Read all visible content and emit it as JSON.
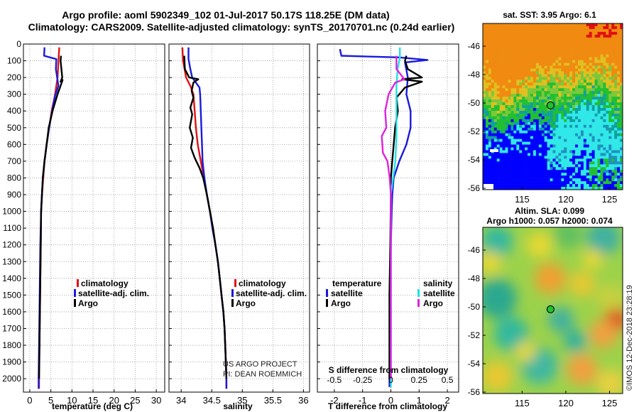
{
  "title": {
    "line1": "Argo profile: aoml 5902349_102 01-Jul-2017 50.17S 118.25E (DM data)",
    "line2": "Climatology: CARS2009. Satellite-adjusted climatology: synTS_20170701.nc (0.24d earlier)"
  },
  "colors": {
    "climatology": "#e01010",
    "satellite": "#1a1adc",
    "argo": "#000000",
    "argo_salinity_diff": "#e020e0",
    "satellite_salinity_diff": "#20e0e0"
  },
  "depth_ticks": [
    "0",
    "100",
    "200",
    "300",
    "400",
    "500",
    "600",
    "700",
    "800",
    "900",
    "1000",
    "1100",
    "1200",
    "1300",
    "1400",
    "1500",
    "1600",
    "1700",
    "1800",
    "1900",
    "2000"
  ],
  "chart_data": [
    {
      "type": "line",
      "title": "temperature profile",
      "xlabel": "temperature (deg C)",
      "ylabel": "depth",
      "xlim": [
        -1.5,
        32
      ],
      "ylim": [
        2080,
        0
      ],
      "xticks": [
        0,
        5,
        10,
        15,
        20,
        25,
        30
      ],
      "xtick_labels": [
        "0",
        "5",
        "10",
        "15",
        "20",
        "25",
        "30"
      ],
      "legend": [
        "climatology",
        "satellite-adj. clim.",
        "Argo"
      ],
      "series": [
        {
          "name": "climatology",
          "color": "climatology",
          "points": [
            [
              7.0,
              20
            ],
            [
              6.8,
              100
            ],
            [
              6.6,
              200
            ],
            [
              6.0,
              300
            ],
            [
              5.2,
              400
            ],
            [
              4.6,
              500
            ],
            [
              4.0,
              600
            ],
            [
              3.5,
              700
            ],
            [
              3.2,
              800
            ],
            [
              2.9,
              900
            ],
            [
              2.7,
              1000
            ],
            [
              2.6,
              1200
            ],
            [
              2.5,
              1400
            ],
            [
              2.4,
              1600
            ],
            [
              2.3,
              1800
            ],
            [
              2.2,
              2000
            ],
            [
              2.2,
              2060
            ]
          ]
        },
        {
          "name": "satellite-adj. clim.",
          "color": "satellite",
          "points": [
            [
              3.5,
              20
            ],
            [
              3.4,
              70
            ],
            [
              6.3,
              90
            ],
            [
              6.2,
              150
            ],
            [
              6.8,
              250
            ],
            [
              6.0,
              310
            ],
            [
              5.3,
              400
            ],
            [
              4.6,
              500
            ],
            [
              4.0,
              600
            ],
            [
              3.5,
              700
            ],
            [
              3.1,
              800
            ],
            [
              2.9,
              900
            ],
            [
              2.7,
              1000
            ],
            [
              2.5,
              1200
            ],
            [
              2.4,
              1400
            ],
            [
              2.3,
              1600
            ],
            [
              2.2,
              1800
            ],
            [
              2.1,
              2000
            ],
            [
              2.1,
              2060
            ]
          ]
        },
        {
          "name": "Argo",
          "color": "argo",
          "points": [
            [
              7.4,
              70
            ],
            [
              7.3,
              100
            ],
            [
              7.5,
              150
            ],
            [
              7.7,
              200
            ],
            [
              7.3,
              225
            ],
            [
              7.8,
              215
            ],
            [
              6.6,
              300
            ],
            [
              5.4,
              400
            ],
            [
              4.5,
              500
            ],
            [
              4.0,
              600
            ],
            [
              3.5,
              700
            ],
            [
              3.1,
              800
            ],
            [
              2.9,
              900
            ],
            [
              2.7,
              1000
            ],
            [
              2.6,
              1200
            ],
            [
              2.5,
              1400
            ],
            [
              2.4,
              1600
            ],
            [
              2.3,
              1800
            ],
            [
              2.2,
              2000
            ]
          ]
        }
      ]
    },
    {
      "type": "line",
      "title": "salinity profile",
      "xlabel": "salinity",
      "ylabel": "depth",
      "xlim": [
        33.8,
        36.1
      ],
      "ylim": [
        2080,
        0
      ],
      "xticks": [
        34,
        34.5,
        35,
        35.5,
        36
      ],
      "xtick_labels": [
        "34",
        "34.5",
        "35",
        "35.5",
        "36"
      ],
      "legend": [
        "climatology",
        "satellite-adj. clim.",
        "Argo"
      ],
      "credit": [
        "US ARGO PROJECT",
        "PI: DEAN ROEMMICH"
      ],
      "series": [
        {
          "name": "climatology",
          "color": "climatology",
          "points": [
            [
              34.02,
              20
            ],
            [
              34.03,
              100
            ],
            [
              34.08,
              200
            ],
            [
              34.15,
              250
            ],
            [
              34.2,
              300
            ],
            [
              34.22,
              400
            ],
            [
              34.24,
              500
            ],
            [
              34.27,
              600
            ],
            [
              34.32,
              700
            ],
            [
              34.37,
              800
            ],
            [
              34.42,
              900
            ],
            [
              34.47,
              1000
            ],
            [
              34.52,
              1100
            ],
            [
              34.56,
              1200
            ],
            [
              34.6,
              1300
            ],
            [
              34.63,
              1400
            ],
            [
              34.66,
              1500
            ],
            [
              34.69,
              1600
            ],
            [
              34.71,
              1700
            ],
            [
              34.72,
              1800
            ],
            [
              34.73,
              1900
            ],
            [
              34.74,
              2000
            ],
            [
              34.74,
              2060
            ]
          ]
        },
        {
          "name": "satellite-adj. clim.",
          "color": "satellite",
          "points": [
            [
              34.12,
              20
            ],
            [
              34.12,
              90
            ],
            [
              34.15,
              150
            ],
            [
              34.18,
              200
            ],
            [
              34.3,
              260
            ],
            [
              34.31,
              300
            ],
            [
              34.32,
              400
            ],
            [
              34.33,
              500
            ],
            [
              34.34,
              600
            ],
            [
              34.35,
              700
            ],
            [
              34.38,
              800
            ],
            [
              34.42,
              900
            ],
            [
              34.47,
              1000
            ],
            [
              34.51,
              1100
            ],
            [
              34.56,
              1200
            ],
            [
              34.6,
              1300
            ],
            [
              34.63,
              1400
            ],
            [
              34.66,
              1500
            ],
            [
              34.69,
              1600
            ],
            [
              34.71,
              1700
            ],
            [
              34.72,
              1800
            ],
            [
              34.73,
              1900
            ],
            [
              34.74,
              2000
            ],
            [
              34.74,
              2060
            ]
          ]
        },
        {
          "name": "Argo",
          "color": "argo",
          "points": [
            [
              34.05,
              70
            ],
            [
              34.06,
              150
            ],
            [
              34.13,
              200
            ],
            [
              34.28,
              210
            ],
            [
              34.2,
              230
            ],
            [
              34.17,
              280
            ],
            [
              34.2,
              320
            ],
            [
              34.15,
              380
            ],
            [
              34.18,
              420
            ],
            [
              34.14,
              500
            ],
            [
              34.19,
              560
            ],
            [
              34.16,
              620
            ],
            [
              34.22,
              680
            ],
            [
              34.3,
              740
            ],
            [
              34.36,
              800
            ],
            [
              34.42,
              900
            ],
            [
              34.47,
              1000
            ],
            [
              34.52,
              1100
            ],
            [
              34.56,
              1200
            ],
            [
              34.6,
              1300
            ],
            [
              34.63,
              1400
            ],
            [
              34.66,
              1500
            ],
            [
              34.69,
              1600
            ],
            [
              34.71,
              1700
            ],
            [
              34.72,
              1800
            ],
            [
              34.73,
              1900
            ],
            [
              34.74,
              2000
            ]
          ]
        }
      ]
    },
    {
      "type": "line",
      "title": "difference from climatology",
      "xlabel": "T difference from climatology",
      "xlabel_top": "S difference from climatology",
      "ylabel": "depth",
      "xlim": [
        -2.6,
        2.4
      ],
      "ylim": [
        2080,
        0
      ],
      "xticks": [
        -2,
        -1,
        0,
        1,
        2
      ],
      "xtick_labels": [
        "-2",
        "-1",
        "0",
        "1",
        "2"
      ],
      "s_ticks": [
        -0.5,
        -0.25,
        0,
        0.25,
        0.5
      ],
      "s_tick_labels": [
        "-0.5",
        "-0.25",
        "0",
        "0.25",
        "0.5"
      ],
      "legend_left": {
        "title": "temperature",
        "items": [
          "satellite",
          "Argo"
        ]
      },
      "legend_right": {
        "title": "salinity",
        "items": [
          "satellite",
          "Argo"
        ]
      },
      "series": [
        {
          "name": "T satellite",
          "color": "satellite",
          "points": [
            [
              -1.8,
              30
            ],
            [
              -1.75,
              70
            ],
            [
              0.3,
              80
            ],
            [
              1.3,
              95
            ],
            [
              0.5,
              110
            ],
            [
              0.6,
              200
            ],
            [
              0.55,
              300
            ],
            [
              0.7,
              400
            ],
            [
              0.7,
              500
            ],
            [
              0.55,
              600
            ],
            [
              0.3,
              700
            ],
            [
              0.1,
              800
            ],
            [
              0.05,
              900
            ],
            [
              0.03,
              1000
            ],
            [
              0,
              1200
            ],
            [
              -0.02,
              1500
            ],
            [
              -0.04,
              1800
            ],
            [
              -0.05,
              2050
            ]
          ]
        },
        {
          "name": "T Argo",
          "color": "argo",
          "points": [
            [
              0.55,
              70
            ],
            [
              0.5,
              100
            ],
            [
              0.6,
              150
            ],
            [
              1.1,
              200
            ],
            [
              0.4,
              210
            ],
            [
              1.1,
              225
            ],
            [
              0.5,
              260
            ],
            [
              0.2,
              320
            ],
            [
              0.25,
              400
            ],
            [
              0.15,
              500
            ],
            [
              0.1,
              600
            ],
            [
              0.05,
              700
            ],
            [
              0,
              800
            ],
            [
              0,
              900
            ],
            [
              -0.02,
              1200
            ],
            [
              -0.05,
              1500
            ],
            [
              -0.05,
              1800
            ],
            [
              -0.05,
              2000
            ]
          ]
        },
        {
          "name": "S satellite",
          "color": "satellite_salinity_diff",
          "points": [
            [
              0.08,
              20
            ],
            [
              0.08,
              80
            ],
            [
              0.06,
              150
            ],
            [
              0.05,
              250
            ],
            [
              0.05,
              400
            ],
            [
              0.05,
              550
            ],
            [
              0.04,
              700
            ],
            [
              0.02,
              800
            ],
            [
              0,
              900
            ],
            [
              0,
              1200
            ],
            [
              0,
              1500
            ],
            [
              0,
              2050
            ]
          ]
        },
        {
          "name": "S Argo",
          "color": "argo_salinity_diff",
          "points": [
            [
              0.05,
              70
            ],
            [
              0.05,
              150
            ],
            [
              0.12,
              210
            ],
            [
              0.04,
              230
            ],
            [
              -0.02,
              300
            ],
            [
              -0.05,
              400
            ],
            [
              -0.04,
              500
            ],
            [
              -0.08,
              550
            ],
            [
              -0.07,
              650
            ],
            [
              -0.03,
              700
            ],
            [
              -0.01,
              800
            ],
            [
              0,
              900
            ],
            [
              0,
              1200
            ],
            [
              0,
              1500
            ],
            [
              0,
              2000
            ]
          ]
        }
      ]
    },
    {
      "type": "heatmap",
      "title": "sat. SST: 3.95 Argo: 6.1",
      "xticks": [
        115,
        120,
        125
      ],
      "xtick_labels": [
        "115",
        "120",
        "125"
      ],
      "yticks": [
        -46,
        -48,
        -50,
        -52,
        -54,
        -56
      ],
      "ytick_labels": [
        "-46",
        "-48",
        "-50",
        "-52",
        "-54",
        "-56"
      ],
      "xlim": [
        110.5,
        126.5
      ],
      "ylim": [
        -56.1,
        -44.4
      ],
      "marker": {
        "lon": 118.25,
        "lat": -50.17
      }
    },
    {
      "type": "heatmap",
      "title_line1": "Altim. SLA: 0.099",
      "title_line2": "Argo h1000: 0.057 h2000: 0.074",
      "xticks": [
        115,
        120,
        125
      ],
      "xtick_labels": [
        "115",
        "120",
        "125"
      ],
      "yticks": [
        -46,
        -48,
        -50,
        -52,
        -54,
        -56
      ],
      "ytick_labels": [
        "-46",
        "-48",
        "-50",
        "-52",
        "-54",
        "-56"
      ],
      "xlim": [
        110.5,
        126.5
      ],
      "ylim": [
        -56.1,
        -44.4
      ],
      "marker": {
        "lon": 118.25,
        "lat": -50.17
      }
    }
  ],
  "credit_vertical": "©IMOS 12-Dec-2018 23:28:19"
}
